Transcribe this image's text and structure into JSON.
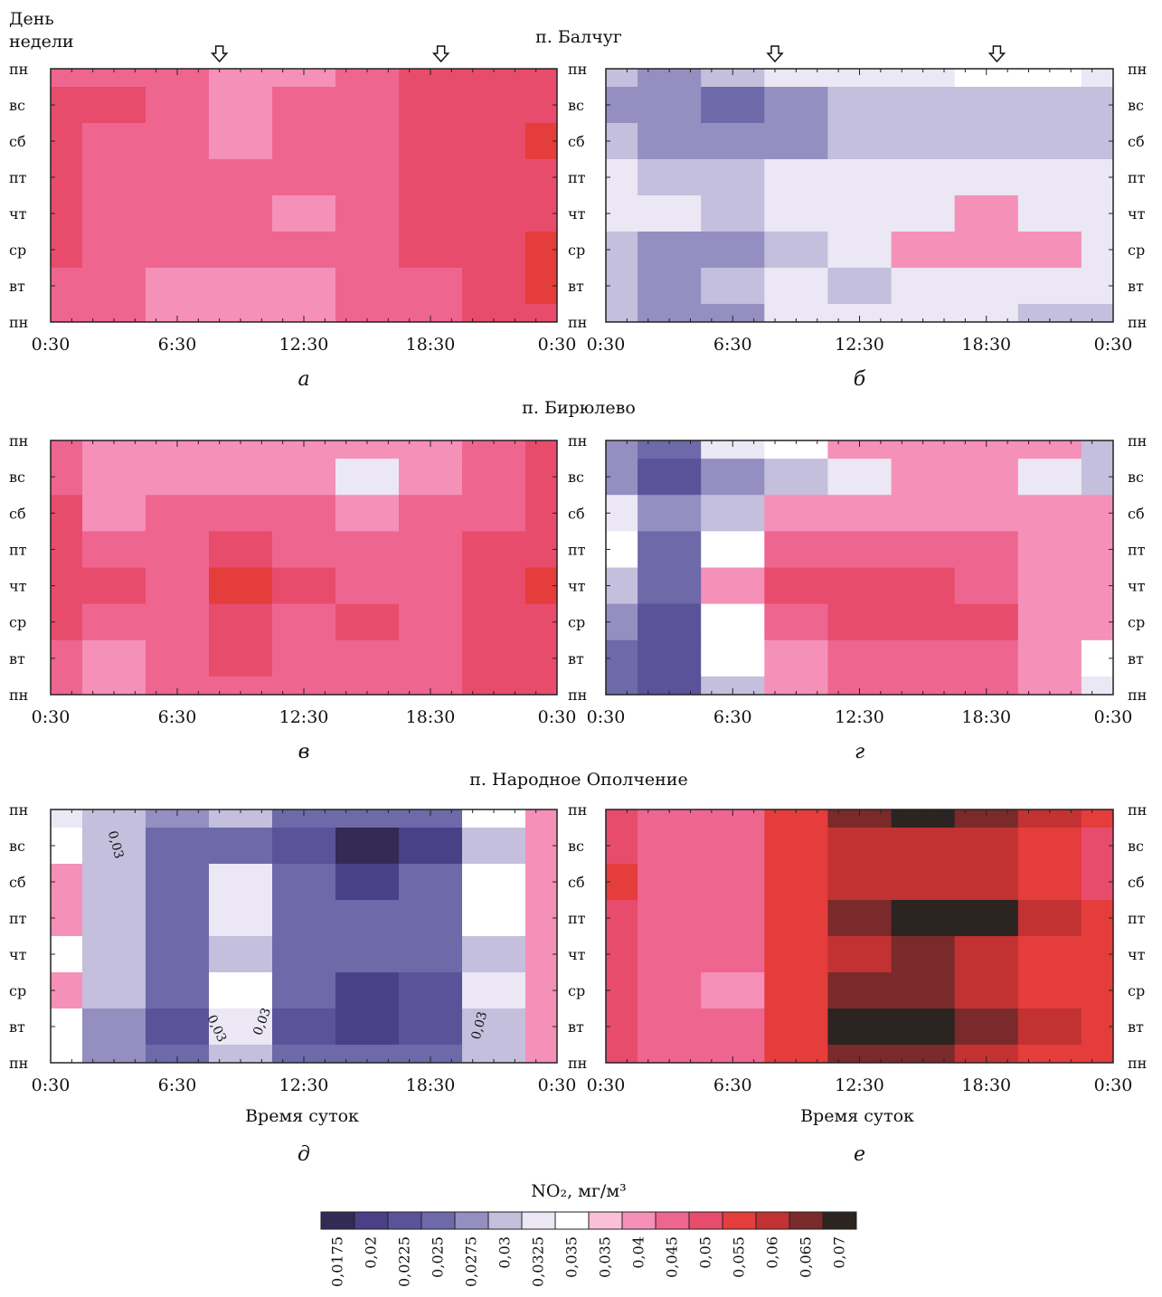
{
  "figure": {
    "y_axis_title_line1": "День",
    "y_axis_title_line2": "недели",
    "x_axis_title": "Время суток",
    "day_labels": [
      "пн",
      "вс",
      "сб",
      "пт",
      "чт",
      "ср",
      "вт",
      "пн"
    ],
    "time_labels": [
      "0:30",
      "6:30",
      "12:30",
      "18:30",
      "0:30"
    ],
    "station_titles": [
      "п. Балчуг",
      "п. Бирюлево",
      "п. Народное Ополчение"
    ],
    "panel_letters": [
      "а",
      "б",
      "в",
      "г",
      "д",
      "е"
    ],
    "colorbar_title": "NO₂, мг/м³",
    "colorbar_ticks": [
      "0,0175",
      "0,02",
      "0,0225",
      "0,025",
      "0,0275",
      "0,03",
      "0,0325",
      "0,035",
      "0,035",
      "0,04",
      "0,045",
      "0,05",
      "0,055",
      "0,06",
      "0,065",
      "0,07"
    ],
    "colorbar_colors": [
      "#332a55",
      "#4a4088",
      "#5a539a",
      "#6e69a8",
      "#948fc0",
      "#c3bfdc",
      "#ebe7f4",
      "#ffffff",
      "#fbc0d8",
      "#f590b8",
      "#ee6690",
      "#e84c6c",
      "#e53c3c",
      "#c23232",
      "#7a2a2a",
      "#2b2421"
    ],
    "contour_labels": [
      "0,03",
      "0,03",
      "0,03",
      "0,03"
    ],
    "arrow_markers_hours": [
      8.5,
      19
    ]
  },
  "chart_data": [
    {
      "type": "heatmap",
      "panel": "а",
      "station": "п. Балчуг",
      "x_axis": "Время суток",
      "x_ticks": [
        "0:30",
        "6:30",
        "12:30",
        "18:30",
        "0:30"
      ],
      "y_axis": "День недели",
      "y_ticks": [
        "пн",
        "вс",
        "сб",
        "пт",
        "чт",
        "ср",
        "вт",
        "пн"
      ],
      "grid_hours": [
        0.5,
        3.5,
        6.5,
        9.5,
        12.5,
        15.5,
        18.5,
        21.5,
        24.5
      ],
      "values": [
        [
          0.045,
          0.045,
          0.045,
          0.04,
          0.04,
          0.045,
          0.05,
          0.05,
          0.05
        ],
        [
          0.05,
          0.05,
          0.045,
          0.04,
          0.045,
          0.045,
          0.05,
          0.05,
          0.05
        ],
        [
          0.05,
          0.045,
          0.045,
          0.04,
          0.045,
          0.045,
          0.05,
          0.05,
          0.055
        ],
        [
          0.05,
          0.045,
          0.045,
          0.045,
          0.045,
          0.045,
          0.05,
          0.05,
          0.05
        ],
        [
          0.05,
          0.045,
          0.045,
          0.045,
          0.04,
          0.045,
          0.05,
          0.05,
          0.05
        ],
        [
          0.05,
          0.045,
          0.045,
          0.045,
          0.045,
          0.045,
          0.05,
          0.05,
          0.055
        ],
        [
          0.045,
          0.045,
          0.04,
          0.04,
          0.04,
          0.045,
          0.045,
          0.05,
          0.055
        ],
        [
          0.045,
          0.045,
          0.04,
          0.04,
          0.04,
          0.045,
          0.045,
          0.05,
          0.05
        ]
      ]
    },
    {
      "type": "heatmap",
      "panel": "б",
      "station": "п. Балчуг",
      "x_axis": "Время суток",
      "x_ticks": [
        "0:30",
        "6:30",
        "12:30",
        "18:30",
        "0:30"
      ],
      "y_axis": "День недели",
      "y_ticks": [
        "пн",
        "вс",
        "сб",
        "пт",
        "чт",
        "ср",
        "вт",
        "пн"
      ],
      "grid_hours": [
        0.5,
        3.5,
        6.5,
        9.5,
        12.5,
        15.5,
        18.5,
        21.5,
        24.5
      ],
      "values": [
        [
          0.03,
          0.0275,
          0.03,
          0.0325,
          0.0325,
          0.0325,
          0.035,
          0.035,
          0.0325
        ],
        [
          0.0275,
          0.0275,
          0.025,
          0.0275,
          0.03,
          0.03,
          0.03,
          0.03,
          0.03
        ],
        [
          0.03,
          0.0275,
          0.0275,
          0.0275,
          0.03,
          0.03,
          0.03,
          0.03,
          0.03
        ],
        [
          0.0325,
          0.03,
          0.03,
          0.0325,
          0.0325,
          0.0325,
          0.0325,
          0.0325,
          0.0325
        ],
        [
          0.0325,
          0.0325,
          0.03,
          0.0325,
          0.0325,
          0.0325,
          0.04,
          0.0325,
          0.0325
        ],
        [
          0.03,
          0.0275,
          0.0275,
          0.03,
          0.0325,
          0.04,
          0.04,
          0.04,
          0.0325
        ],
        [
          0.03,
          0.0275,
          0.03,
          0.0325,
          0.03,
          0.0325,
          0.0325,
          0.0325,
          0.0325
        ],
        [
          0.03,
          0.0275,
          0.0275,
          0.0325,
          0.0325,
          0.0325,
          0.0325,
          0.03,
          0.03
        ]
      ]
    },
    {
      "type": "heatmap",
      "panel": "в",
      "station": "п. Бирюлево",
      "x_axis": "Время суток",
      "x_ticks": [
        "0:30",
        "6:30",
        "12:30",
        "18:30",
        "0:30"
      ],
      "y_axis": "День недели",
      "y_ticks": [
        "пн",
        "вс",
        "сб",
        "пт",
        "чт",
        "ср",
        "вт",
        "пн"
      ],
      "grid_hours": [
        0.5,
        3.5,
        6.5,
        9.5,
        12.5,
        15.5,
        18.5,
        21.5,
        24.5
      ],
      "values": [
        [
          0.045,
          0.04,
          0.04,
          0.04,
          0.04,
          0.04,
          0.04,
          0.045,
          0.05
        ],
        [
          0.045,
          0.04,
          0.04,
          0.04,
          0.04,
          0.0325,
          0.04,
          0.045,
          0.05
        ],
        [
          0.05,
          0.04,
          0.045,
          0.045,
          0.045,
          0.04,
          0.045,
          0.045,
          0.05
        ],
        [
          0.05,
          0.045,
          0.045,
          0.05,
          0.045,
          0.045,
          0.045,
          0.05,
          0.05
        ],
        [
          0.05,
          0.05,
          0.045,
          0.055,
          0.05,
          0.045,
          0.045,
          0.05,
          0.055
        ],
        [
          0.05,
          0.045,
          0.045,
          0.05,
          0.045,
          0.05,
          0.045,
          0.05,
          0.05
        ],
        [
          0.045,
          0.04,
          0.045,
          0.05,
          0.045,
          0.045,
          0.045,
          0.05,
          0.05
        ],
        [
          0.045,
          0.04,
          0.045,
          0.045,
          0.045,
          0.045,
          0.045,
          0.05,
          0.05
        ]
      ]
    },
    {
      "type": "heatmap",
      "panel": "г",
      "station": "п. Бирюлево",
      "x_axis": "Время суток",
      "x_ticks": [
        "0:30",
        "6:30",
        "12:30",
        "18:30",
        "0:30"
      ],
      "y_axis": "День недели",
      "y_ticks": [
        "пн",
        "вс",
        "сб",
        "пт",
        "чт",
        "ср",
        "вт",
        "пн"
      ],
      "grid_hours": [
        0.5,
        3.5,
        6.5,
        9.5,
        12.5,
        15.5,
        18.5,
        21.5,
        24.5
      ],
      "values": [
        [
          0.0275,
          0.025,
          0.0325,
          0.035,
          0.04,
          0.04,
          0.04,
          0.04,
          0.03
        ],
        [
          0.0275,
          0.0225,
          0.0275,
          0.03,
          0.0325,
          0.04,
          0.04,
          0.0325,
          0.03
        ],
        [
          0.0325,
          0.0275,
          0.03,
          0.04,
          0.04,
          0.04,
          0.04,
          0.04,
          0.04
        ],
        [
          0.035,
          0.025,
          0.035,
          0.045,
          0.045,
          0.045,
          0.045,
          0.04,
          0.04
        ],
        [
          0.03,
          0.025,
          0.04,
          0.05,
          0.05,
          0.05,
          0.045,
          0.04,
          0.04
        ],
        [
          0.0275,
          0.0225,
          0.035,
          0.045,
          0.05,
          0.05,
          0.05,
          0.04,
          0.04
        ],
        [
          0.025,
          0.0225,
          0.035,
          0.04,
          0.045,
          0.045,
          0.045,
          0.04,
          0.035
        ],
        [
          0.025,
          0.0225,
          0.03,
          0.04,
          0.045,
          0.045,
          0.045,
          0.04,
          0.0325
        ]
      ]
    },
    {
      "type": "heatmap",
      "panel": "д",
      "station": "п. Народное Ополчение",
      "x_axis": "Время суток",
      "x_ticks": [
        "0:30",
        "6:30",
        "12:30",
        "18:30",
        "0:30"
      ],
      "y_axis": "День недели",
      "y_ticks": [
        "пн",
        "вс",
        "сб",
        "пт",
        "чт",
        "ср",
        "вт",
        "пн"
      ],
      "grid_hours": [
        0.5,
        3.5,
        6.5,
        9.5,
        12.5,
        15.5,
        18.5,
        21.5,
        24.5
      ],
      "values": [
        [
          0.0325,
          0.03,
          0.0275,
          0.03,
          0.025,
          0.025,
          0.025,
          0.035,
          0.04
        ],
        [
          0.035,
          0.03,
          0.025,
          0.025,
          0.0225,
          0.0175,
          0.02,
          0.03,
          0.04
        ],
        [
          0.04,
          0.03,
          0.025,
          0.0325,
          0.025,
          0.02,
          0.025,
          0.035,
          0.04
        ],
        [
          0.04,
          0.03,
          0.025,
          0.0325,
          0.025,
          0.025,
          0.025,
          0.035,
          0.04
        ],
        [
          0.035,
          0.03,
          0.025,
          0.03,
          0.025,
          0.025,
          0.025,
          0.03,
          0.04
        ],
        [
          0.04,
          0.03,
          0.025,
          0.035,
          0.025,
          0.02,
          0.0225,
          0.0325,
          0.04
        ],
        [
          0.035,
          0.0275,
          0.0225,
          0.0325,
          0.0225,
          0.02,
          0.0225,
          0.03,
          0.04
        ],
        [
          0.035,
          0.0275,
          0.025,
          0.03,
          0.025,
          0.025,
          0.025,
          0.03,
          0.04
        ]
      ]
    },
    {
      "type": "heatmap",
      "panel": "е",
      "station": "п. Народное Ополчение",
      "x_axis": "Время суток",
      "x_ticks": [
        "0:30",
        "6:30",
        "12:30",
        "18:30",
        "0:30"
      ],
      "y_axis": "День недели",
      "y_ticks": [
        "пн",
        "вс",
        "сб",
        "пт",
        "чт",
        "ср",
        "вт",
        "пн"
      ],
      "grid_hours": [
        0.5,
        3.5,
        6.5,
        9.5,
        12.5,
        15.5,
        18.5,
        21.5,
        24.5
      ],
      "values": [
        [
          0.05,
          0.045,
          0.045,
          0.055,
          0.065,
          0.07,
          0.065,
          0.06,
          0.055
        ],
        [
          0.05,
          0.045,
          0.045,
          0.055,
          0.06,
          0.06,
          0.06,
          0.055,
          0.05
        ],
        [
          0.055,
          0.045,
          0.045,
          0.055,
          0.06,
          0.06,
          0.06,
          0.055,
          0.05
        ],
        [
          0.05,
          0.045,
          0.045,
          0.055,
          0.065,
          0.07,
          0.07,
          0.06,
          0.055
        ],
        [
          0.05,
          0.045,
          0.045,
          0.055,
          0.06,
          0.065,
          0.06,
          0.055,
          0.055
        ],
        [
          0.05,
          0.045,
          0.04,
          0.055,
          0.065,
          0.065,
          0.06,
          0.055,
          0.055
        ],
        [
          0.05,
          0.045,
          0.045,
          0.055,
          0.07,
          0.07,
          0.065,
          0.06,
          0.055
        ],
        [
          0.05,
          0.045,
          0.045,
          0.055,
          0.065,
          0.065,
          0.06,
          0.055,
          0.055
        ]
      ]
    }
  ]
}
